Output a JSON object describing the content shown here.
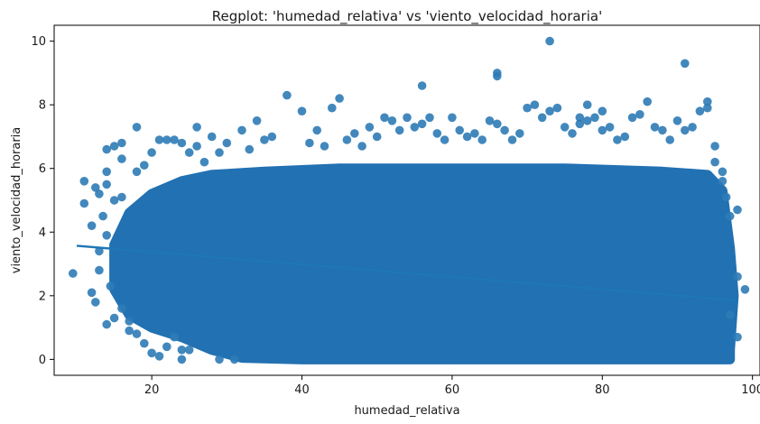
{
  "chart_data": {
    "type": "scatter",
    "title": "Regplot: 'humedad_relativa' vs 'viento_velocidad_horaria'",
    "xlabel": "humedad_relativa",
    "ylabel": "viento_velocidad_horaria",
    "xlim": [
      7,
      101
    ],
    "ylim": [
      -0.5,
      10.5
    ],
    "xticks": [
      20,
      40,
      60,
      80,
      100
    ],
    "yticks": [
      0,
      2,
      4,
      6,
      8,
      10
    ],
    "grid": false,
    "colors": {
      "points": "#2d7bb6",
      "fit_line": "#1f77b4",
      "dense_fill": "#2271b2"
    },
    "fit_line": {
      "x": [
        10,
        98
      ],
      "y": [
        3.57,
        1.85
      ]
    },
    "dense_region": {
      "upper": [
        [
          15,
          3.6
        ],
        [
          17,
          4.6
        ],
        [
          20,
          5.2
        ],
        [
          24,
          5.6
        ],
        [
          28,
          5.8
        ],
        [
          35,
          5.9
        ],
        [
          45,
          6.0
        ],
        [
          60,
          6.0
        ],
        [
          75,
          6.0
        ],
        [
          88,
          5.9
        ],
        [
          94,
          5.8
        ],
        [
          96,
          5.3
        ],
        [
          97,
          3.5
        ],
        [
          97.5,
          2.0
        ],
        [
          97,
          0.3
        ]
      ],
      "lower": [
        [
          15,
          2.2
        ],
        [
          17,
          1.4
        ],
        [
          20,
          1.0
        ],
        [
          24,
          0.7
        ],
        [
          28,
          0.3
        ],
        [
          32,
          0.05
        ],
        [
          40,
          0
        ],
        [
          60,
          0
        ],
        [
          80,
          0
        ],
        [
          97,
          0
        ]
      ]
    },
    "outliers": [
      [
        9.5,
        2.7
      ],
      [
        11,
        5.6
      ],
      [
        11,
        4.9
      ],
      [
        12,
        4.2
      ],
      [
        12,
        2.1
      ],
      [
        12.5,
        1.8
      ],
      [
        12.5,
        5.4
      ],
      [
        13,
        5.2
      ],
      [
        13,
        3.4
      ],
      [
        13,
        2.8
      ],
      [
        13.5,
        4.5
      ],
      [
        14,
        6.6
      ],
      [
        14,
        5.9
      ],
      [
        14,
        5.5
      ],
      [
        14,
        3.9
      ],
      [
        14,
        1.1
      ],
      [
        14.5,
        2.3
      ],
      [
        15,
        6.7
      ],
      [
        15,
        5.0
      ],
      [
        15,
        1.3
      ],
      [
        16,
        6.3
      ],
      [
        16,
        6.8
      ],
      [
        16,
        5.1
      ],
      [
        16,
        1.6
      ],
      [
        17,
        1.2
      ],
      [
        17,
        0.9
      ],
      [
        18,
        7.3
      ],
      [
        18,
        5.9
      ],
      [
        18,
        0.8
      ],
      [
        19,
        6.1
      ],
      [
        19,
        0.5
      ],
      [
        20,
        6.5
      ],
      [
        20,
        0.2
      ],
      [
        21,
        6.9
      ],
      [
        21,
        0.1
      ],
      [
        22,
        6.9
      ],
      [
        22,
        0.4
      ],
      [
        23,
        6.9
      ],
      [
        23,
        0.7
      ],
      [
        24,
        6.8
      ],
      [
        24,
        0.3
      ],
      [
        24,
        0.0
      ],
      [
        25,
        6.5
      ],
      [
        25,
        0.3
      ],
      [
        26,
        7.3
      ],
      [
        26,
        6.7
      ],
      [
        27,
        6.2
      ],
      [
        28,
        7.0
      ],
      [
        29,
        6.5
      ],
      [
        29,
        0.0
      ],
      [
        30,
        6.8
      ],
      [
        31,
        0.0
      ],
      [
        32,
        7.2
      ],
      [
        33,
        6.6
      ],
      [
        34,
        7.5
      ],
      [
        35,
        6.9
      ],
      [
        36,
        7.0
      ],
      [
        38,
        8.3
      ],
      [
        40,
        7.8
      ],
      [
        41,
        6.8
      ],
      [
        42,
        7.2
      ],
      [
        43,
        6.7
      ],
      [
        44,
        7.9
      ],
      [
        45,
        8.2
      ],
      [
        46,
        6.9
      ],
      [
        47,
        7.1
      ],
      [
        48,
        6.7
      ],
      [
        49,
        7.3
      ],
      [
        50,
        7.0
      ],
      [
        51,
        7.6
      ],
      [
        52,
        7.5
      ],
      [
        53,
        7.2
      ],
      [
        54,
        7.6
      ],
      [
        55,
        7.3
      ],
      [
        56,
        8.6
      ],
      [
        56,
        7.4
      ],
      [
        57,
        7.6
      ],
      [
        58,
        7.1
      ],
      [
        59,
        6.9
      ],
      [
        60,
        7.6
      ],
      [
        61,
        7.2
      ],
      [
        62,
        7.0
      ],
      [
        63,
        7.1
      ],
      [
        64,
        6.9
      ],
      [
        65,
        7.5
      ],
      [
        66,
        9.0
      ],
      [
        66,
        8.9
      ],
      [
        66,
        7.4
      ],
      [
        67,
        7.2
      ],
      [
        68,
        6.9
      ],
      [
        69,
        7.1
      ],
      [
        70,
        7.9
      ],
      [
        71,
        8.0
      ],
      [
        72,
        7.6
      ],
      [
        73,
        10.0
      ],
      [
        73,
        7.8
      ],
      [
        74,
        7.9
      ],
      [
        75,
        7.3
      ],
      [
        76,
        7.1
      ],
      [
        77,
        7.6
      ],
      [
        77,
        7.4
      ],
      [
        78,
        7.5
      ],
      [
        78,
        8.0
      ],
      [
        79,
        7.6
      ],
      [
        80,
        7.2
      ],
      [
        80,
        7.8
      ],
      [
        81,
        7.3
      ],
      [
        82,
        6.9
      ],
      [
        83,
        7.0
      ],
      [
        84,
        7.6
      ],
      [
        85,
        7.7
      ],
      [
        86,
        8.1
      ],
      [
        87,
        7.3
      ],
      [
        88,
        7.2
      ],
      [
        89,
        6.9
      ],
      [
        90,
        7.5
      ],
      [
        91,
        9.3
      ],
      [
        91,
        7.2
      ],
      [
        92,
        7.3
      ],
      [
        93,
        7.8
      ],
      [
        94,
        8.1
      ],
      [
        94,
        7.9
      ],
      [
        95,
        6.7
      ],
      [
        95,
        6.2
      ],
      [
        96,
        5.9
      ],
      [
        96,
        5.6
      ],
      [
        96.5,
        5.1
      ],
      [
        97,
        4.5
      ],
      [
        98,
        4.7
      ],
      [
        98,
        2.6
      ],
      [
        99,
        2.2
      ],
      [
        98,
        0.7
      ],
      [
        97,
        1.4
      ]
    ]
  }
}
